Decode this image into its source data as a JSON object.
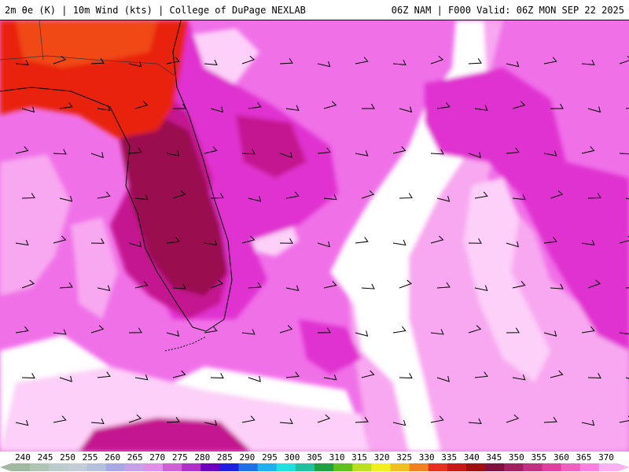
{
  "header": {
    "left_title": "2m θe (K) | 10m Wind (kts) | College of DuPage NEXLAB",
    "right_title": "06Z NAM | F000 Valid: 06Z MON SEP 22 2025"
  },
  "colorbar": {
    "ticks": [
      "240",
      "245",
      "250",
      "255",
      "260",
      "265",
      "270",
      "275",
      "280",
      "285",
      "290",
      "295",
      "300",
      "305",
      "310",
      "315",
      "320",
      "325",
      "330",
      "335",
      "340",
      "345",
      "350",
      "355",
      "360",
      "365",
      "370"
    ],
    "colors": [
      "#a0b8a0",
      "#b0c4b4",
      "#bccccc",
      "#c4ccd8",
      "#b4c0dc",
      "#a8a8e4",
      "#c8a0e8",
      "#e090e8",
      "#d060d8",
      "#b030c8",
      "#7000c0",
      "#2020e0",
      "#2070e8",
      "#20b0f0",
      "#20e0e0",
      "#20c0a0",
      "#20a040",
      "#60c020",
      "#b8e020",
      "#f0f020",
      "#f0c020",
      "#f08020",
      "#e83020",
      "#c81818",
      "#a01010",
      "#801040",
      "#a02060",
      "#c03080",
      "#e040a0",
      "#f060c0",
      "#ff80e0",
      "#ffb0f0"
    ],
    "stops": [
      240,
      370
    ]
  },
  "map": {
    "region": "Florida and surrounding waters",
    "palette": {
      "red": "#e82010",
      "orange": "#f04818",
      "maroon": "#9a1050",
      "dark_magenta": "#c41890",
      "magenta": "#e030d0",
      "pink": "#f070e8",
      "light_pink": "#f8a8f0",
      "pale_pink": "#fcd0f8",
      "white": "#ffffff"
    }
  }
}
